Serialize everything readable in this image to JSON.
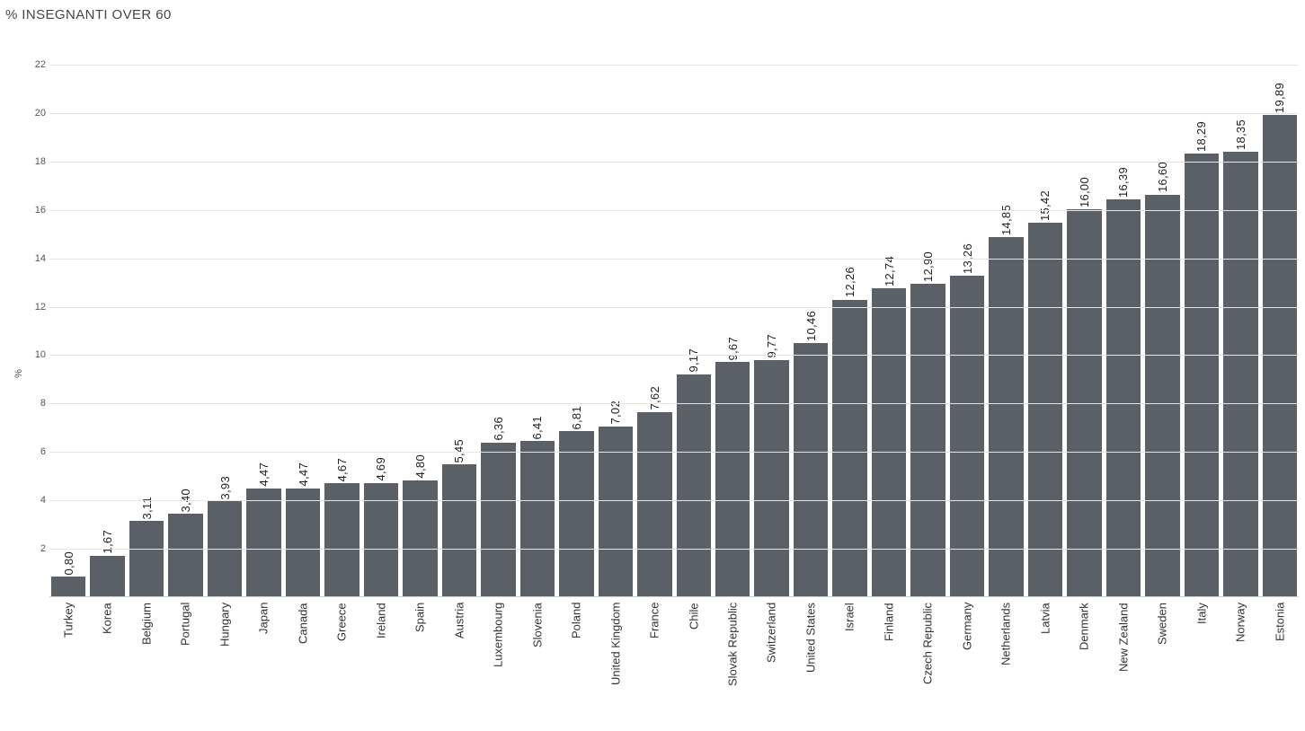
{
  "chart": {
    "type": "bar",
    "title": "% INSEGNANTI OVER 60",
    "y_axis_label": "%",
    "background_color": "#ffffff",
    "bar_color": "#5a6066",
    "grid_color": "#e6e6e6",
    "axis_color": "#cfcfcf",
    "title_color": "#454545",
    "label_color": "#333333",
    "tick_color": "#555555",
    "title_fontsize": 15,
    "label_fontsize": 13,
    "tick_fontsize": 11,
    "ylim": [
      0,
      23
    ],
    "ytick_step": 2,
    "yticks": [
      2,
      4,
      6,
      8,
      10,
      12,
      14,
      16,
      18,
      20,
      22
    ],
    "bar_width": 0.85,
    "categories": [
      "Turkey",
      "Korea",
      "Belgium",
      "Portugal",
      "Hungary",
      "Japan",
      "Canada",
      "Greece",
      "Ireland",
      "Spain",
      "Austria",
      "Luxembourg",
      "Slovenia",
      "Poland",
      "United Kingdom",
      "France",
      "Chile",
      "Slovak Republic",
      "Switzerland",
      "United States",
      "Israel",
      "Finland",
      "Czech Republic",
      "Germany",
      "Netherlands",
      "Latvia",
      "Denmark",
      "New Zealand",
      "Sweden",
      "Italy",
      "Norway",
      "Estonia"
    ],
    "values": [
      0.8,
      1.67,
      3.11,
      3.4,
      3.93,
      4.47,
      4.47,
      4.67,
      4.69,
      4.8,
      5.45,
      6.36,
      6.41,
      6.81,
      7.02,
      7.62,
      9.17,
      9.67,
      9.77,
      10.46,
      12.26,
      12.74,
      12.9,
      13.26,
      14.85,
      15.42,
      16.0,
      16.39,
      16.6,
      18.29,
      18.35,
      19.89
    ],
    "value_labels": [
      "0,80",
      "1,67",
      "3,11",
      "3,40",
      "3,93",
      "4,47",
      "4,47",
      "4,67",
      "4,69",
      "4,80",
      "5,45",
      "6,36",
      "6,41",
      "6,81",
      "7,02",
      "7,62",
      "9,17",
      "9,67",
      "9,77",
      "10,46",
      "12,26",
      "12,74",
      "12,90",
      "13,26",
      "14,85",
      "15,42",
      "16,00",
      "16,39",
      "16,60",
      "18,29",
      "18,35",
      "19,89"
    ]
  }
}
